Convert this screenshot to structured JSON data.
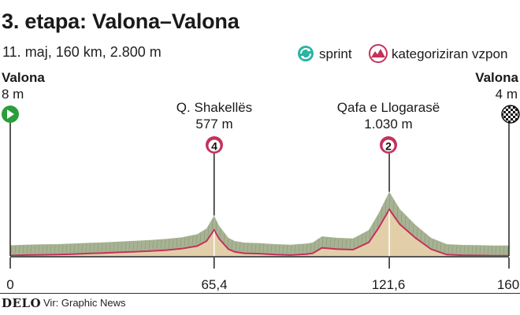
{
  "title": "3. etapa: Valona–Valona",
  "subtitle": "11. maj, 160 km, 2.800 m",
  "legend": {
    "sprint_label": "sprint",
    "climb_label": "kategoriziran vzpon",
    "sprint_icon": "sprint-icon",
    "climb_icon": "mountain-climb-icon"
  },
  "start": {
    "name": "Valona",
    "elevation": "8 m",
    "icon": "start-play-icon"
  },
  "finish": {
    "name": "Valona",
    "elevation": "4 m",
    "icon": "checkered-flag-icon"
  },
  "climbs": [
    {
      "name": "Q. Shakellës",
      "elevation": "577 m",
      "category": "4",
      "km": 65.4
    },
    {
      "name": "Qafa e Llogarasë",
      "elevation": "1.030 m",
      "category": "2",
      "km": 121.6
    }
  ],
  "x_ticks": [
    {
      "km": 0,
      "label": "0"
    },
    {
      "km": 65.4,
      "label": "65,4"
    },
    {
      "km": 121.6,
      "label": "121,6"
    },
    {
      "km": 160,
      "label": "160"
    }
  ],
  "chart_data": {
    "type": "area",
    "x": [
      0,
      5,
      10,
      15,
      20,
      25,
      30,
      35,
      40,
      45,
      50,
      55,
      60,
      63,
      65.4,
      67,
      70,
      72,
      75,
      80,
      85,
      90,
      95,
      97,
      100,
      105,
      110,
      115,
      118,
      121.6,
      125,
      130,
      135,
      140,
      145,
      150,
      155,
      160
    ],
    "y": [
      8,
      20,
      25,
      30,
      40,
      55,
      65,
      80,
      95,
      110,
      130,
      160,
      220,
      330,
      577,
      380,
      150,
      90,
      60,
      50,
      30,
      20,
      40,
      60,
      180,
      150,
      140,
      300,
      600,
      1030,
      700,
      400,
      150,
      30,
      15,
      10,
      5,
      4
    ],
    "xlim": [
      0,
      160
    ],
    "ylim": [
      0,
      1100
    ],
    "colors": {
      "fill": "#e2cfa9",
      "line": "#c4315b",
      "relief": "#a7b392"
    }
  },
  "footer": {
    "logo": "DELO",
    "source": "Vir: Graphic News"
  }
}
